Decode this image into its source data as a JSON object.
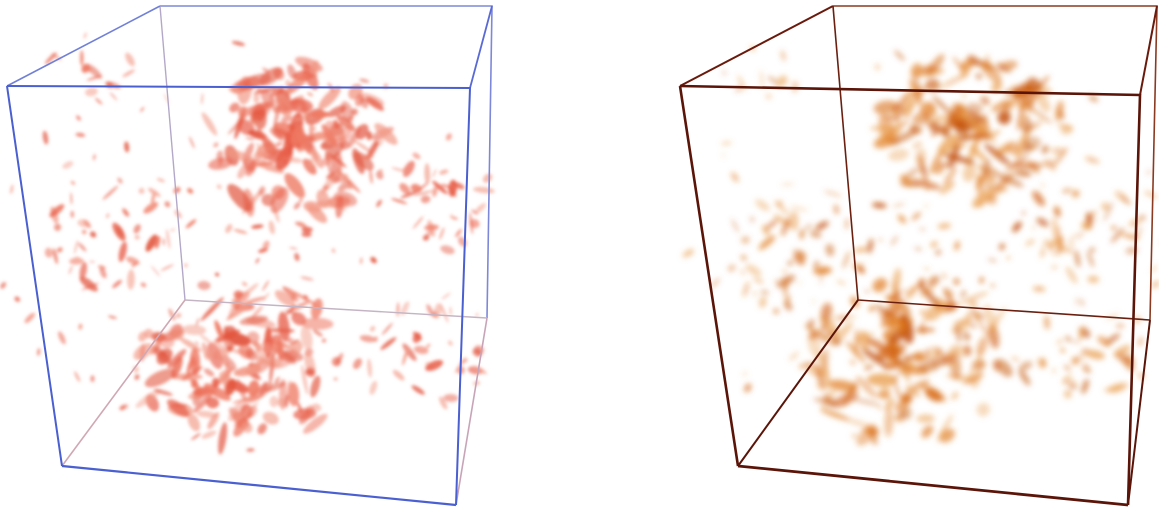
{
  "panels": [
    {
      "id": "left",
      "name": "volume-render-left",
      "edge_color_near": "#4a5fd0",
      "edge_color_far": "#c8b4c8",
      "blob_colors": [
        "#e8604a",
        "#ef7a64",
        "#f29a86",
        "#e2563f"
      ]
    },
    {
      "id": "right",
      "name": "volume-render-right",
      "edge_color_near": "#5a1408",
      "edge_color_far": "#7a2a12",
      "blob_colors": [
        "#d2600c",
        "#e07a1e",
        "#eaa052",
        "#c4520a"
      ]
    }
  ]
}
